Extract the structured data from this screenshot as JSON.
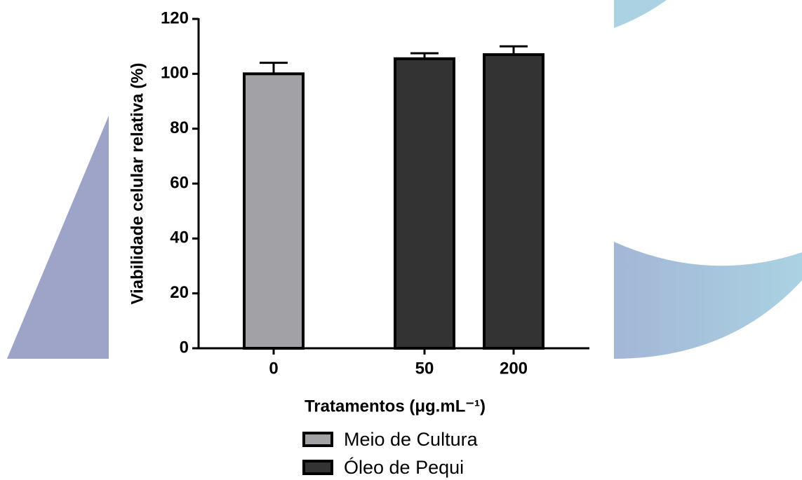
{
  "chart_data": {
    "type": "bar",
    "y_label": "Viabilidade celular relativa (%)",
    "x_label": "Tratamentos (μg.mL⁻¹)",
    "categories": [
      "0",
      "50",
      "200"
    ],
    "series": [
      {
        "name": "Meio de Cultura",
        "color": "#a2a1a6",
        "values": [
          100,
          null,
          null
        ],
        "errors": [
          4,
          null,
          null
        ]
      },
      {
        "name": "Óleo de Pequi",
        "color": "#333333",
        "values": [
          null,
          105.5,
          107
        ],
        "errors": [
          null,
          2,
          3
        ]
      }
    ],
    "ylim": [
      0,
      120
    ],
    "yticks": [
      0,
      20,
      40,
      60,
      80,
      100,
      120
    ]
  }
}
